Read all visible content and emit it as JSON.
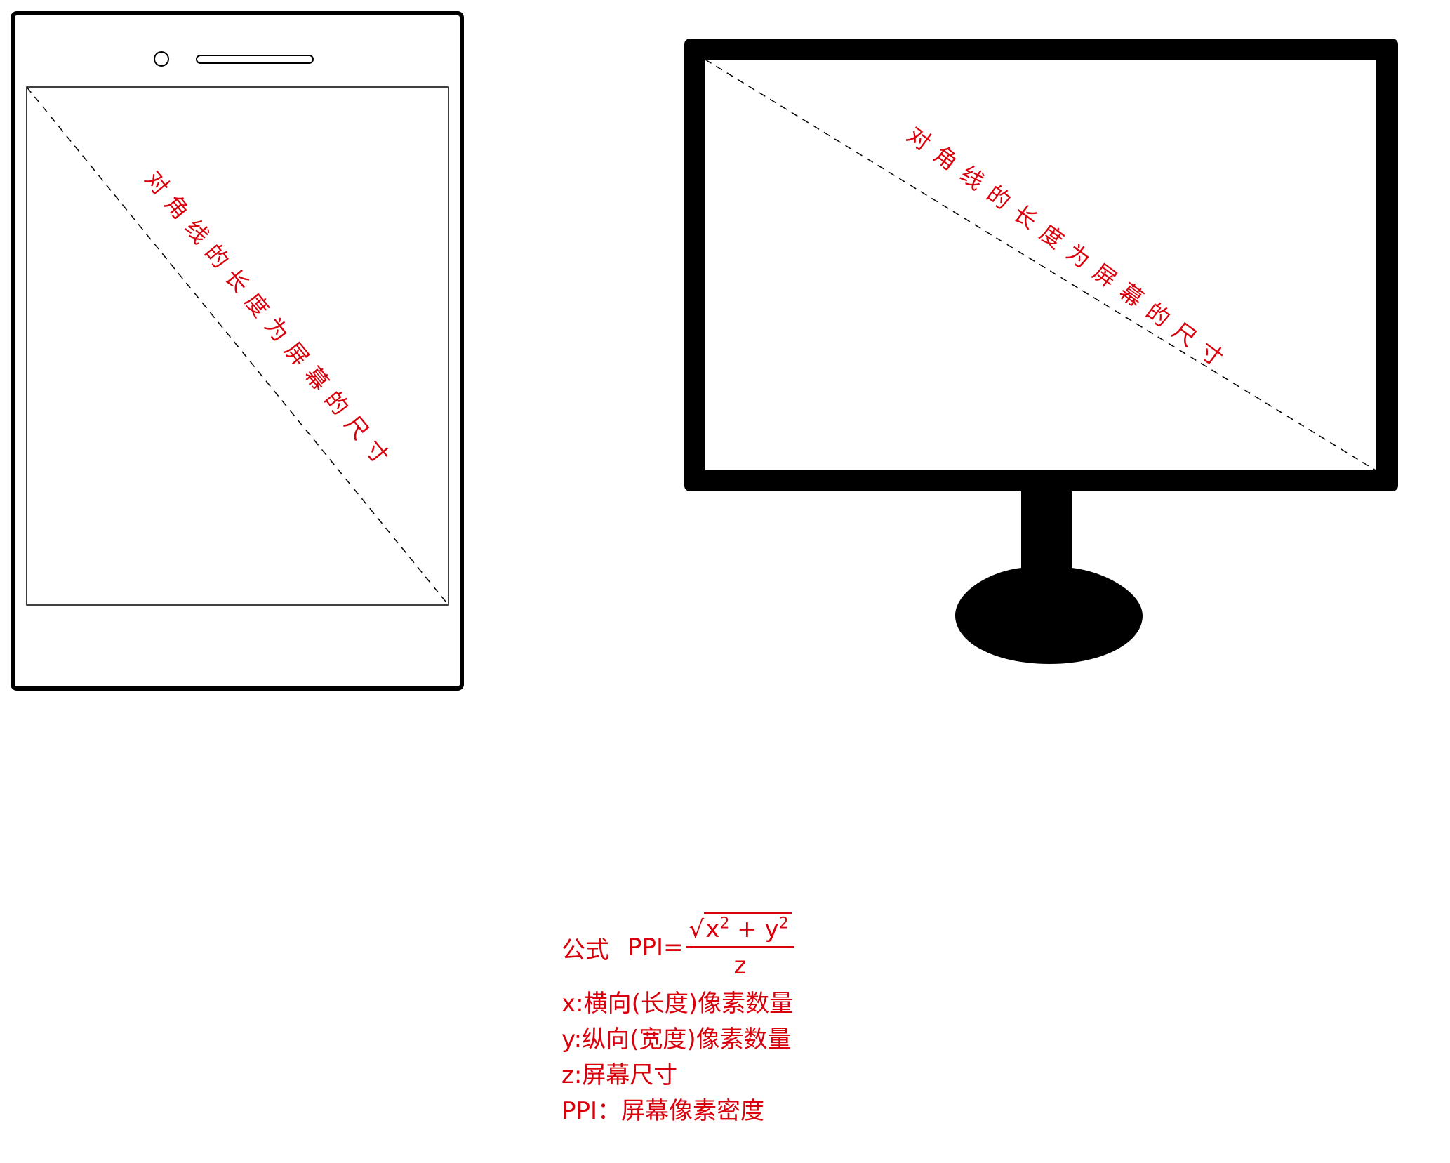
{
  "diagram": {
    "phone": {
      "diagonal_label": "对角线的长度为屏幕的尺寸"
    },
    "monitor": {
      "diagonal_label": "对角线的长度为屏幕的尺寸"
    },
    "colors": {
      "annotation": "#d9000b",
      "outline": "#000000"
    }
  },
  "formula": {
    "label": "公式",
    "lhs": "PPI=",
    "numerator_x": "x",
    "numerator_plus": "+",
    "numerator_y": "y",
    "exponent": "2",
    "denominator": "z"
  },
  "legend": [
    "x:横向(长度)像素数量",
    "y:纵向(宽度)像素数量",
    "z:屏幕尺寸",
    "PPI：屏幕像素密度"
  ]
}
